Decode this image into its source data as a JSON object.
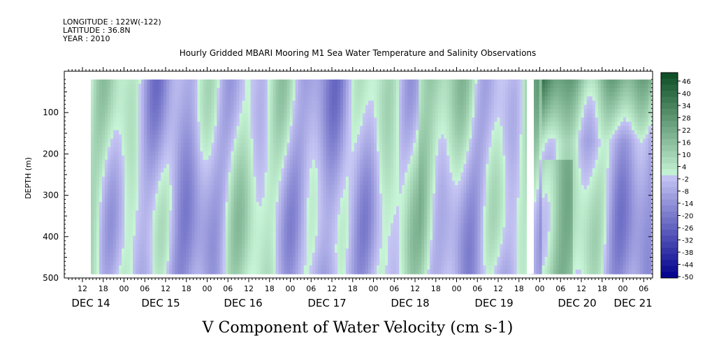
{
  "header": {
    "longitude": "LONGITUDE : 122W(-122)",
    "latitude": "LATITUDE : 36.8N",
    "year": "YEAR : 2010"
  },
  "chart_data": {
    "type": "heatmap",
    "title": "Hourly Gridded MBARI Mooring M1 Sea Water Temperature and Salinity Observations",
    "xlabel": "V Component of Water Velocity (cm s-1)",
    "ylabel": "DEPTH (m)",
    "x_hour_ticks": [
      "12",
      "18",
      "00",
      "06",
      "12",
      "18",
      "00",
      "06",
      "12",
      "18",
      "00",
      "06",
      "12",
      "18",
      "00",
      "06",
      "12",
      "18",
      "00",
      "06",
      "12",
      "18",
      "00",
      "06",
      "12",
      "18",
      "00",
      "06"
    ],
    "x_day_labels": [
      "DEC 14",
      "DEC 15",
      "DEC 16",
      "DEC 17",
      "DEC 18",
      "DEC 19",
      "DEC 20",
      "DEC 21"
    ],
    "y_ticks": [
      "100",
      "200",
      "300",
      "400",
      "500"
    ],
    "y_range": [
      20,
      500
    ],
    "colorbar_labels": [
      "46",
      "40",
      "34",
      "28",
      "22",
      "16",
      "10",
      "4",
      "-2",
      "-8",
      "-14",
      "-20",
      "-26",
      "-32",
      "-38",
      "-44",
      "-50"
    ],
    "colorbar_range": [
      -50,
      50
    ],
    "colors": {
      "positive": "#1bd44a",
      "negative": "#5a78e0",
      "neutral": "#c8c8f0"
    }
  }
}
